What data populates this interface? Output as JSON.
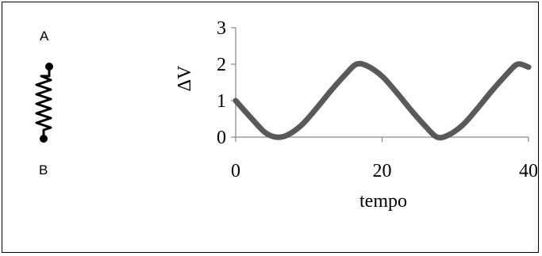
{
  "component": {
    "terminal_a": "A",
    "terminal_b": "B",
    "icon": "resistor-icon"
  },
  "chart_data": {
    "type": "line",
    "xlabel": "tempo",
    "ylabel": "ΔV",
    "xlim": [
      0,
      40
    ],
    "ylim": [
      0,
      3
    ],
    "x_ticks": [
      0,
      20,
      40
    ],
    "y_ticks": [
      0,
      1,
      2,
      3
    ],
    "x_tick_labels": [
      "0",
      "20",
      "40"
    ],
    "y_tick_labels": [
      "0",
      "1",
      "2",
      "3"
    ],
    "grid": false,
    "legend": "none",
    "series": [
      {
        "color": "#595959",
        "x": [
          0,
          2,
          4,
          5.5,
          7,
          9,
          11,
          13,
          15,
          16.5,
          18,
          20,
          22,
          24,
          26,
          27.5,
          29,
          31,
          33,
          35,
          37,
          38.5,
          40
        ],
        "y": [
          1.0,
          0.55,
          0.13,
          0.0,
          0.05,
          0.33,
          0.78,
          1.27,
          1.72,
          2.0,
          1.95,
          1.67,
          1.22,
          0.73,
          0.28,
          0.0,
          0.05,
          0.33,
          0.78,
          1.27,
          1.72,
          2.0,
          1.92
        ]
      }
    ]
  }
}
